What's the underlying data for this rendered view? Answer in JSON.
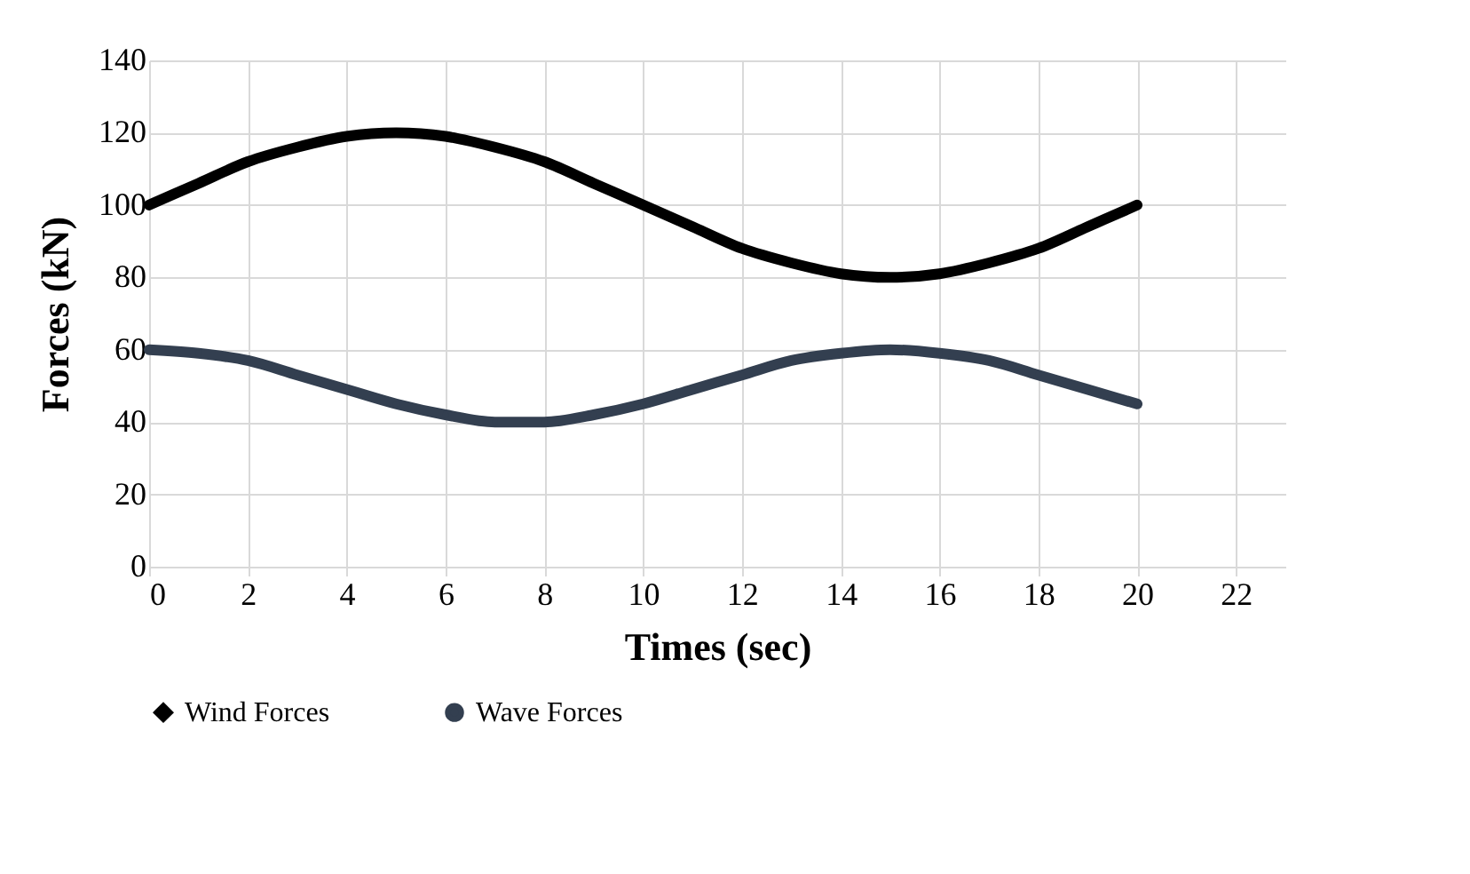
{
  "chart_data": {
    "type": "line",
    "xlabel": "Times (sec)",
    "ylabel": "Forces (kN)",
    "x": [
      0,
      1,
      2,
      3,
      4,
      5,
      6,
      7,
      8,
      9,
      10,
      11,
      12,
      13,
      14,
      15,
      16,
      17,
      18,
      19,
      20
    ],
    "series": [
      {
        "name": "Wind Forces",
        "color": "#000000",
        "marker": "diamond",
        "values": [
          100,
          106,
          112,
          116,
          119,
          120,
          119,
          116,
          112,
          106,
          100,
          94,
          88,
          84,
          81,
          80,
          81,
          84,
          88,
          94,
          100
        ]
      },
      {
        "name": "Wave Forces",
        "color": "#333f50",
        "marker": "circle",
        "values": [
          60,
          59,
          57,
          53,
          49,
          45,
          42,
          40,
          40,
          42,
          45,
          49,
          53,
          57,
          59,
          60,
          59,
          57,
          53,
          49,
          45
        ]
      }
    ],
    "xlim": [
      0,
      23
    ],
    "xticks": [
      0,
      2,
      4,
      6,
      8,
      10,
      12,
      14,
      16,
      18,
      20,
      22
    ],
    "ylim": [
      0,
      140
    ],
    "yticks": [
      0,
      20,
      40,
      60,
      80,
      100,
      120,
      140
    ],
    "grid": true,
    "legend": "bottom",
    "line_style": "solid"
  }
}
